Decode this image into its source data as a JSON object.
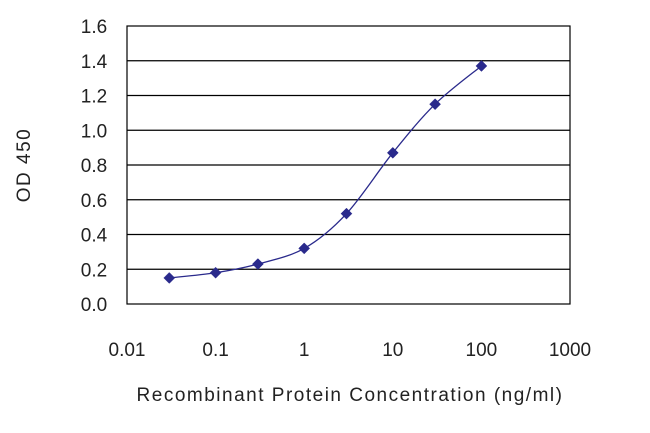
{
  "chart_data": {
    "type": "line",
    "title": "",
    "xlabel": "Recombinant Protein Concentration (ng/ml)",
    "ylabel": "OD 450",
    "x_scale": "log",
    "xlim": [
      0.01,
      1000
    ],
    "ylim": [
      0.0,
      1.6
    ],
    "x_ticks": [
      "0.01",
      "0.1",
      "1",
      "10",
      "100",
      "1000"
    ],
    "y_ticks": [
      "0.0",
      "0.2",
      "0.4",
      "0.6",
      "0.8",
      "1.0",
      "1.2",
      "1.4",
      "1.6"
    ],
    "grid": "horizontal",
    "legend": "none",
    "series": [
      {
        "x": [
          0.03,
          0.1,
          0.3,
          1,
          3,
          10,
          30,
          100
        ],
        "y": [
          0.15,
          0.18,
          0.23,
          0.32,
          0.52,
          0.87,
          1.15,
          1.37
        ],
        "color": "#2a2a8c",
        "marker": "diamond"
      }
    ]
  }
}
